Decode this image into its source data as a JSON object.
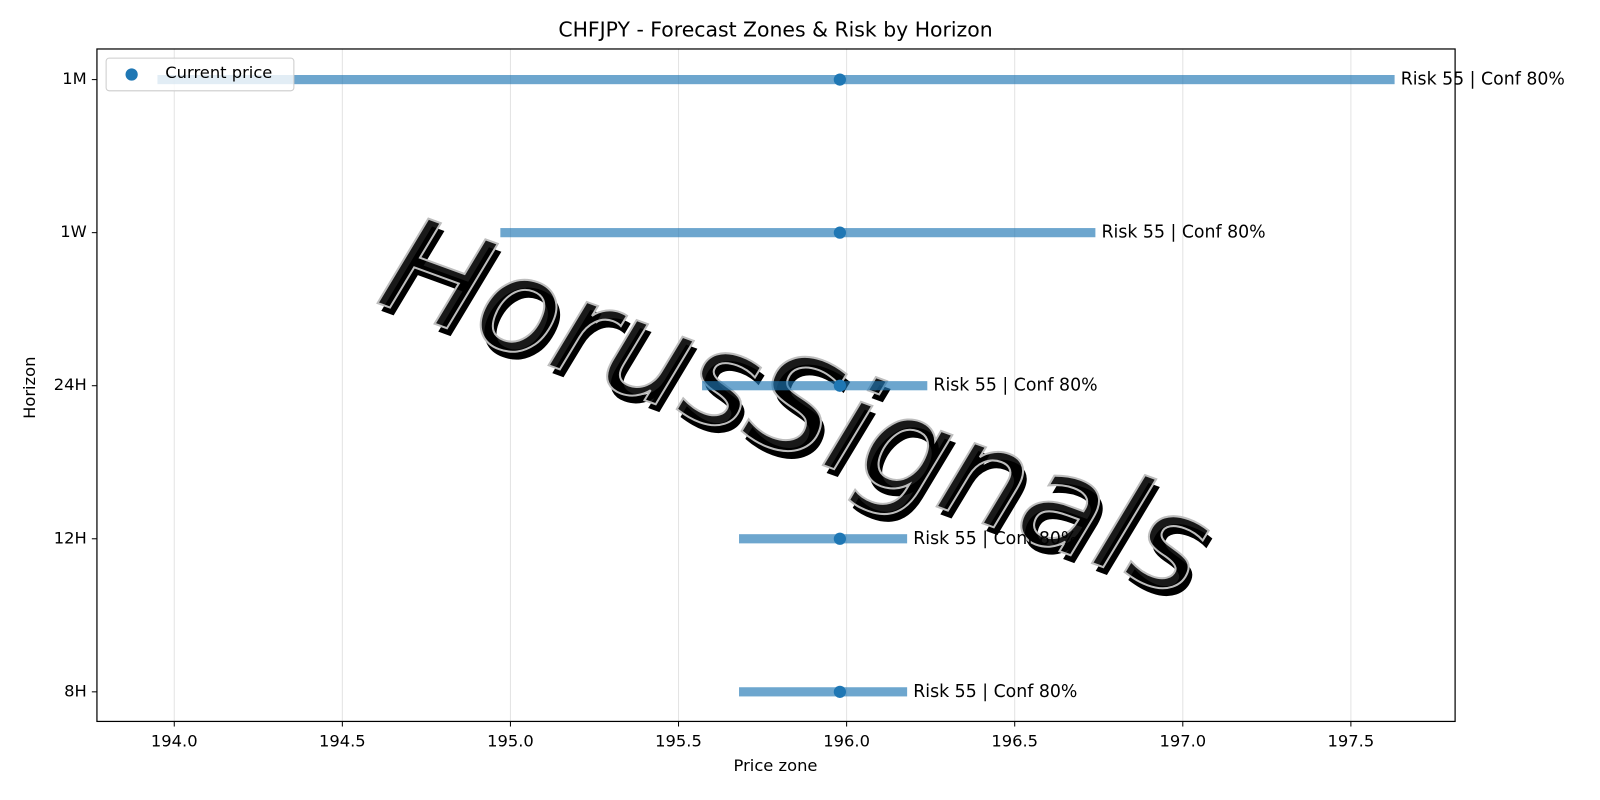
{
  "chart_data": {
    "type": "range",
    "title": "CHFJPY - Forecast Zones & Risk by Horizon",
    "xlabel": "Price zone",
    "ylabel": "Horizon",
    "categories": [
      "8H",
      "12H",
      "24H",
      "1W",
      "1M"
    ],
    "low": [
      195.68,
      195.68,
      195.57,
      194.97,
      193.95
    ],
    "high": [
      196.18,
      196.18,
      196.24,
      196.74,
      197.63
    ],
    "bar_color": "#1f77b4",
    "current": {
      "name": "Current price",
      "color": "#1f77b4",
      "values": [
        195.98,
        195.98,
        195.98,
        195.98,
        195.98
      ]
    },
    "annotations": [
      "Risk 55 | Conf 80%",
      "Risk 55 | Conf 80%",
      "Risk 55 | Conf 80%",
      "Risk 55 | Conf 80%",
      "Risk 55 | Conf 80%"
    ],
    "xlim": [
      193.77,
      197.81
    ],
    "xticks": [
      {
        "value": 194,
        "label": "194.0"
      },
      194.5,
      {
        "value": 195,
        "label": "195.0"
      },
      195.5,
      {
        "value": 196,
        "label": "196.0"
      },
      196.5,
      {
        "value": 197,
        "label": "197.0"
      },
      197.5
    ],
    "grid": true,
    "legend": "upper left",
    "watermark": "HorusSignals"
  }
}
